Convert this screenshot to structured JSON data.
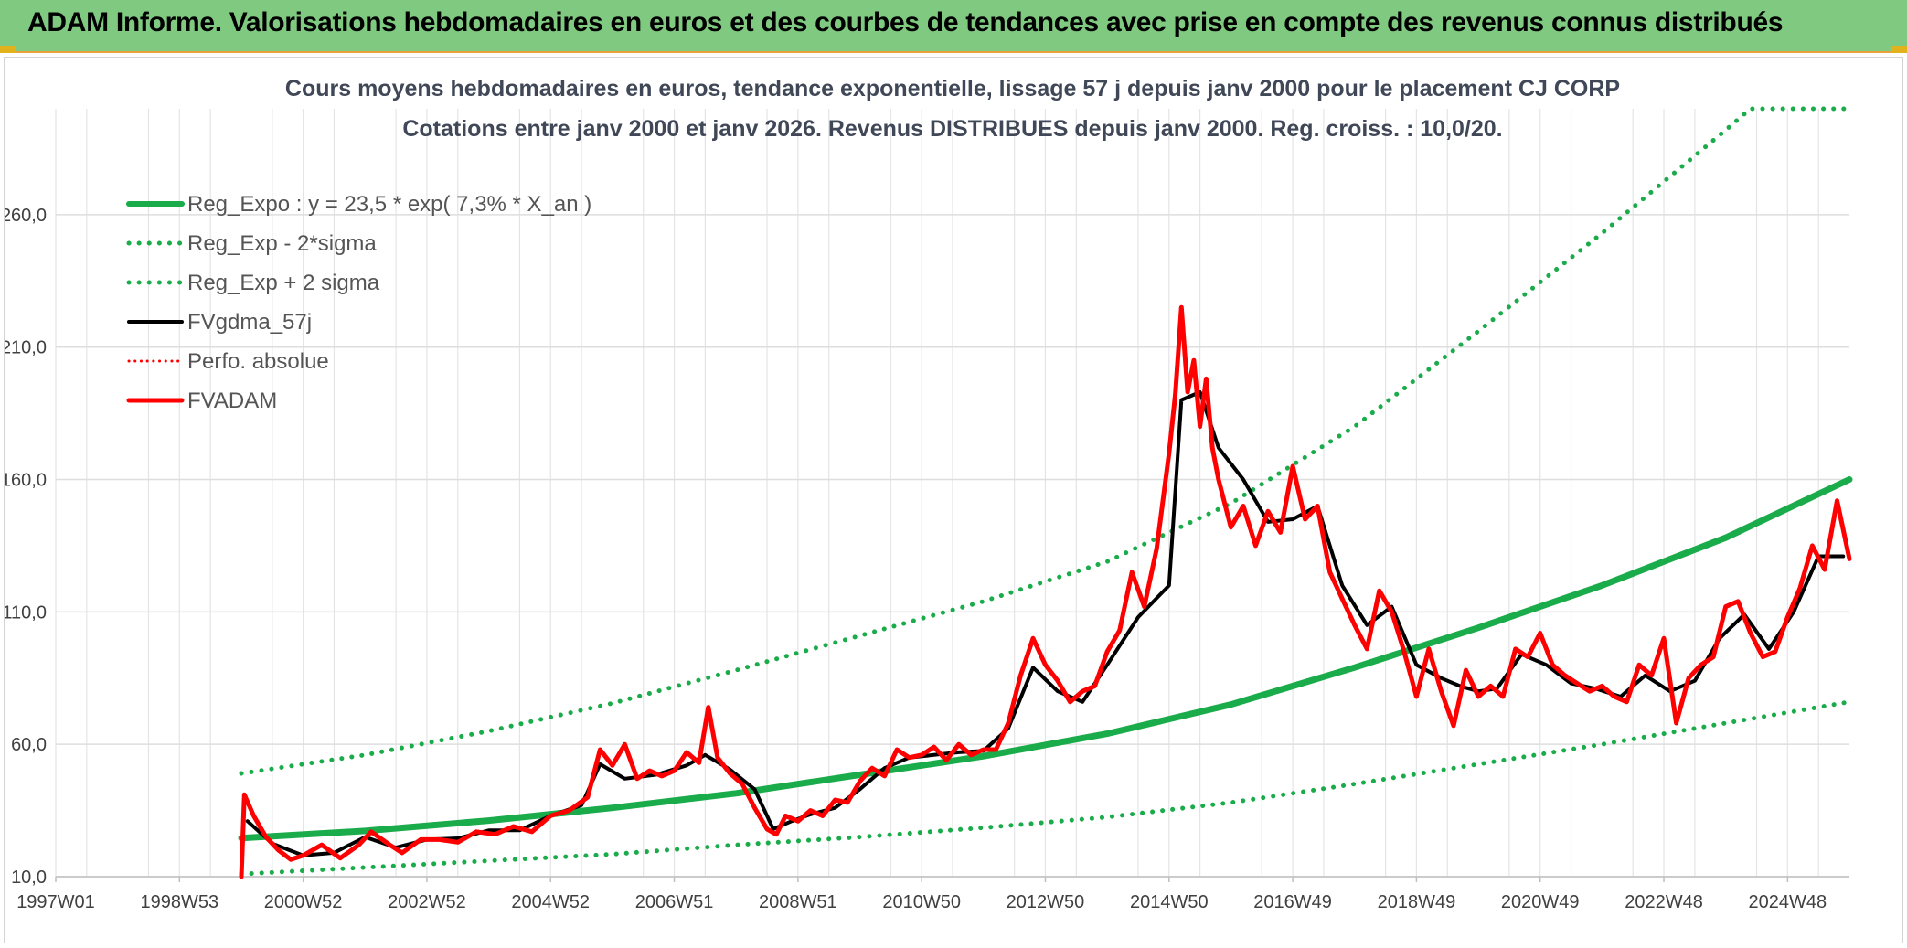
{
  "banner": {
    "title": "ADAM Informe. Valorisations hebdomadaires en euros et des courbes de tendances avec prise en compte des revenus connus distribués",
    "background": "#7fca80"
  },
  "chart_data": {
    "type": "line",
    "title": "Cours moyens hebdomadaires en euros, tendance exponentielle, lissage 57 j depuis janv 2000 pour le placement CJ CORP",
    "subtitle": "Cotations entre janv 2000 et janv 2026. Revenus DISTRIBUES depuis janv 2000. Reg. croiss. : 10,0/20.",
    "xlabel": "",
    "ylabel": "",
    "xlim": [
      1997.0,
      2026.0
    ],
    "ylim": [
      10,
      300
    ],
    "x_ticks": [
      {
        "label": "1997W01",
        "x": 1997.0
      },
      {
        "label": "1998W53",
        "x": 1999.0
      },
      {
        "label": "2000W52",
        "x": 2001.0
      },
      {
        "label": "2002W52",
        "x": 2003.0
      },
      {
        "label": "2004W52",
        "x": 2005.0
      },
      {
        "label": "2006W51",
        "x": 2007.0
      },
      {
        "label": "2008W51",
        "x": 2009.0
      },
      {
        "label": "2010W50",
        "x": 2011.0
      },
      {
        "label": "2012W50",
        "x": 2013.0
      },
      {
        "label": "2014W50",
        "x": 2015.0
      },
      {
        "label": "2016W49",
        "x": 2017.0
      },
      {
        "label": "2018W49",
        "x": 2019.0
      },
      {
        "label": "2020W49",
        "x": 2021.0
      },
      {
        "label": "2022W48",
        "x": 2023.0
      },
      {
        "label": "2024W48",
        "x": 2025.0
      }
    ],
    "y_ticks": [
      {
        "label": "10,0",
        "v": 10
      },
      {
        "label": "60,0",
        "v": 60
      },
      {
        "label": "110,0",
        "v": 110
      },
      {
        "label": "160,0",
        "v": 160
      },
      {
        "label": "210,0",
        "v": 210
      },
      {
        "label": "260,0",
        "v": 260
      }
    ],
    "grid": true,
    "legend_position": "top-left",
    "series": [
      {
        "name": "Reg_Expo : y = 23,5 * exp( 7,3% *  X_an )",
        "color": "#1aab4a",
        "style": "solid",
        "width": 7,
        "x": [
          2000.0,
          2002.0,
          2004.0,
          2006.0,
          2008.0,
          2010.0,
          2012.0,
          2014.0,
          2016.0,
          2018.0,
          2020.0,
          2022.0,
          2024.0,
          2026.0
        ],
        "values": [
          24.6,
          27.3,
          31.2,
          36.0,
          41.5,
          48.5,
          55.5,
          64.0,
          75.0,
          89.0,
          104.0,
          120.0,
          138.0,
          160.0
        ]
      },
      {
        "name": "Reg_Exp - 2*sigma",
        "color": "#1aab4a",
        "style": "dotted",
        "width": 5,
        "x": [
          2000.0,
          2002.0,
          2004.0,
          2006.0,
          2008.0,
          2010.0,
          2012.0,
          2014.0,
          2016.0,
          2018.0,
          2020.0,
          2022.0,
          2024.0,
          2026.0
        ],
        "values": [
          11.0,
          13.5,
          16.0,
          18.5,
          22.0,
          25.0,
          28.5,
          32.5,
          38.0,
          45.0,
          52.5,
          60.0,
          68.0,
          76.0
        ]
      },
      {
        "name": "Reg_Exp + 2 sigma",
        "color": "#1aab4a",
        "style": "dotted",
        "width": 5,
        "x": [
          2000.0,
          2002.0,
          2004.0,
          2006.0,
          2008.0,
          2010.0,
          2012.0,
          2014.0,
          2016.0,
          2018.0,
          2020.0,
          2022.0,
          2024.0,
          2024.4,
          2026.0
        ],
        "values": [
          49.0,
          56.0,
          65.0,
          75.5,
          88.0,
          101.0,
          114.0,
          129.0,
          151.0,
          180.0,
          216.0,
          253.0,
          292.0,
          300.0,
          300.0
        ]
      },
      {
        "name": "FVgdma_57j",
        "color": "#000000",
        "style": "solid",
        "width": 4,
        "x": [
          2000.1,
          2000.5,
          2001.0,
          2001.5,
          2002.0,
          2002.5,
          2003.0,
          2003.5,
          2004.0,
          2004.5,
          2005.0,
          2005.5,
          2005.8,
          2006.2,
          2006.7,
          2007.2,
          2007.5,
          2007.9,
          2008.3,
          2008.6,
          2008.9,
          2009.2,
          2009.6,
          2010.0,
          2010.4,
          2010.8,
          2011.2,
          2011.6,
          2012.0,
          2012.4,
          2012.8,
          2013.2,
          2013.6,
          2014.0,
          2014.5,
          2015.0,
          2015.2,
          2015.5,
          2015.8,
          2016.2,
          2016.6,
          2017.0,
          2017.4,
          2017.8,
          2018.2,
          2018.6,
          2019.0,
          2019.4,
          2019.7,
          2020.0,
          2020.3,
          2020.7,
          2021.1,
          2021.5,
          2021.9,
          2022.3,
          2022.7,
          2023.1,
          2023.5,
          2023.9,
          2024.3,
          2024.7,
          2025.1,
          2025.5,
          2025.9
        ],
        "values": [
          31.0,
          22.5,
          18.0,
          19.0,
          25.0,
          21.0,
          24.0,
          24.5,
          27.5,
          27.5,
          33.0,
          37.0,
          52.5,
          47.0,
          48.5,
          52.0,
          56.0,
          50.5,
          43.0,
          28.0,
          31.0,
          33.5,
          36.0,
          43.0,
          51.0,
          55.0,
          56.0,
          57.0,
          57.5,
          66.0,
          89.0,
          80.0,
          76.0,
          90.0,
          108.0,
          120.0,
          190.0,
          193.0,
          172.0,
          160.0,
          144.0,
          145.0,
          150.0,
          120.0,
          105.0,
          112.0,
          90.0,
          85.0,
          82.0,
          80.0,
          81.0,
          94.0,
          90.0,
          83.0,
          81.0,
          78.0,
          86.0,
          80.0,
          84.0,
          100.0,
          109.0,
          96.0,
          110.0,
          131.0,
          131.0
        ]
      },
      {
        "name": "Perfo. absolue",
        "color": "#ff0000",
        "style": "dotted",
        "width": 3,
        "x": [],
        "values": []
      },
      {
        "name": "FVADAM",
        "color": "#ff0000",
        "style": "solid",
        "width": 5,
        "x": [
          2000.0,
          2000.05,
          2000.2,
          2000.4,
          2000.6,
          2000.8,
          2001.0,
          2001.3,
          2001.6,
          2001.9,
          2002.1,
          2002.4,
          2002.6,
          2002.9,
          2003.2,
          2003.5,
          2003.8,
          2004.1,
          2004.4,
          2004.7,
          2005.0,
          2005.3,
          2005.6,
          2005.8,
          2006.0,
          2006.2,
          2006.4,
          2006.6,
          2006.8,
          2007.0,
          2007.2,
          2007.4,
          2007.55,
          2007.7,
          2007.9,
          2008.1,
          2008.3,
          2008.5,
          2008.65,
          2008.8,
          2009.0,
          2009.2,
          2009.4,
          2009.6,
          2009.8,
          2010.0,
          2010.2,
          2010.4,
          2010.6,
          2010.8,
          2011.0,
          2011.2,
          2011.4,
          2011.6,
          2011.8,
          2012.0,
          2012.2,
          2012.4,
          2012.6,
          2012.8,
          2013.0,
          2013.2,
          2013.4,
          2013.6,
          2013.8,
          2014.0,
          2014.2,
          2014.4,
          2014.6,
          2014.8,
          2015.0,
          2015.1,
          2015.2,
          2015.3,
          2015.4,
          2015.5,
          2015.6,
          2015.7,
          2015.8,
          2016.0,
          2016.2,
          2016.4,
          2016.6,
          2016.8,
          2017.0,
          2017.2,
          2017.4,
          2017.6,
          2017.8,
          2018.0,
          2018.2,
          2018.4,
          2018.6,
          2018.8,
          2019.0,
          2019.2,
          2019.4,
          2019.6,
          2019.8,
          2020.0,
          2020.2,
          2020.4,
          2020.6,
          2020.8,
          2021.0,
          2021.2,
          2021.4,
          2021.6,
          2021.8,
          2022.0,
          2022.2,
          2022.4,
          2022.6,
          2022.8,
          2023.0,
          2023.2,
          2023.4,
          2023.6,
          2023.8,
          2024.0,
          2024.2,
          2024.4,
          2024.6,
          2024.8,
          2025.0,
          2025.2,
          2025.4,
          2025.6,
          2025.8,
          2026.0
        ],
        "values": [
          10.0,
          41.0,
          33.0,
          25.0,
          20.0,
          16.5,
          18.0,
          22.0,
          17.0,
          22.0,
          27.0,
          22.0,
          19.0,
          24.0,
          24.0,
          23.0,
          27.0,
          26.0,
          29.0,
          27.0,
          33.0,
          35.0,
          40.0,
          58.0,
          52.0,
          60.0,
          47.0,
          50.0,
          48.0,
          50.0,
          57.0,
          53.0,
          74.0,
          55.0,
          49.0,
          45.0,
          36.0,
          28.0,
          26.0,
          33.0,
          31.0,
          35.0,
          33.0,
          39.0,
          38.0,
          46.0,
          51.0,
          48.0,
          58.0,
          55.0,
          56.0,
          59.0,
          54.0,
          60.0,
          56.0,
          58.0,
          58.0,
          68.0,
          86.0,
          100.0,
          90.0,
          84.0,
          76.0,
          80.0,
          82.0,
          95.0,
          103.0,
          125.0,
          112.0,
          134.0,
          170.0,
          192.0,
          225.0,
          193.0,
          205.0,
          180.0,
          198.0,
          172.0,
          160.0,
          142.0,
          150.0,
          135.0,
          148.0,
          140.0,
          165.0,
          145.0,
          150.0,
          125.0,
          115.0,
          105.0,
          96.0,
          118.0,
          110.0,
          95.0,
          78.0,
          96.0,
          80.0,
          67.0,
          88.0,
          78.0,
          82.0,
          78.0,
          96.0,
          93.0,
          102.0,
          90.0,
          86.0,
          83.0,
          80.0,
          82.0,
          78.0,
          76.0,
          90.0,
          86.0,
          100.0,
          68.0,
          85.0,
          90.0,
          93.0,
          112.0,
          114.0,
          102.0,
          93.0,
          95.0,
          108.0,
          119.0,
          135.0,
          126.0,
          152.0,
          130.0
        ]
      }
    ]
  }
}
